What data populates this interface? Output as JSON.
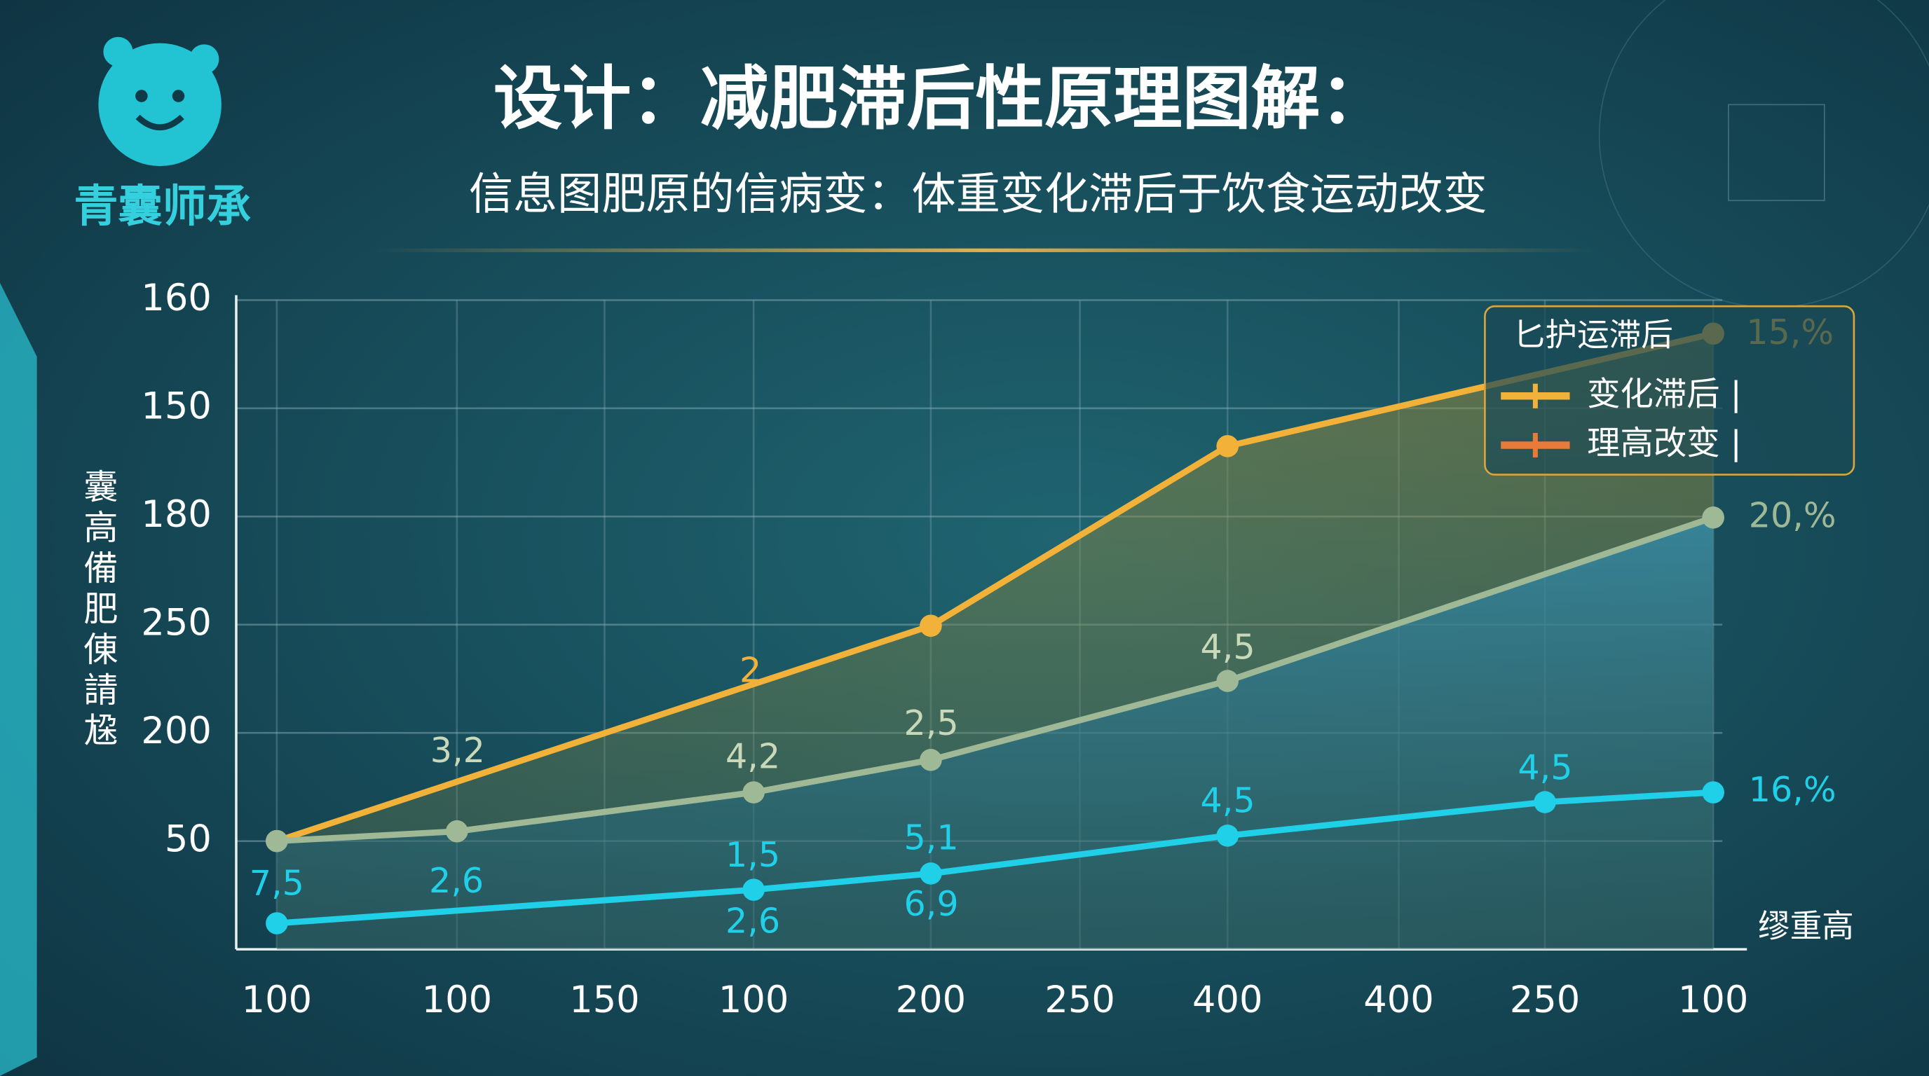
{
  "brand": "青囊师承",
  "chart_data": {
    "type": "line",
    "title": "设计：减肥滞后性原理图解：",
    "subtitle": "信息图肥原的信病变：体重变化滞后于饮食运动改变",
    "ylabel": "囊高備肥倲請尮",
    "xlabel": "缪重高",
    "xlim": [
      -0.3,
      10
    ],
    "xticks": [
      {
        "value": 0,
        "label": "100"
      },
      {
        "value": 1.22,
        "label": "100"
      },
      {
        "value": 2.22,
        "label": "150"
      },
      {
        "value": 3.23,
        "label": "100"
      },
      {
        "value": 4.43,
        "label": "200"
      },
      {
        "value": 5.44,
        "label": "250"
      },
      {
        "value": 6.44,
        "label": "400"
      },
      {
        "value": 7.6,
        "label": "400"
      },
      {
        "value": 8.59,
        "label": "250"
      },
      {
        "value": 9.73,
        "label": "100"
      }
    ],
    "ylim": [
      0,
      6
    ],
    "yticks": [
      {
        "value": 1,
        "label": "50"
      },
      {
        "value": 2,
        "label": "200"
      },
      {
        "value": 3,
        "label": "250"
      },
      {
        "value": 4,
        "label": "180"
      },
      {
        "value": 5,
        "label": "150"
      },
      {
        "value": 6,
        "label": "160"
      }
    ],
    "grid": true,
    "series": [
      {
        "name": "变化滞后 |",
        "color": "#f2b23a",
        "x": [
          0,
          4.43,
          6.44,
          9.73
        ],
        "values": [
          1.0,
          2.99,
          4.65,
          5.69
        ]
      },
      {
        "name": "理高改变 |",
        "color": "#9fb996",
        "x": [
          0,
          1.22,
          3.23,
          4.43,
          6.44,
          9.73
        ],
        "values": [
          1.0,
          1.09,
          1.45,
          1.75,
          2.48,
          3.99
        ]
      },
      {
        "name": "16,%",
        "color": "#1fd0e8",
        "x": [
          0,
          3.23,
          4.43,
          6.44,
          8.59,
          9.73
        ],
        "values": [
          0.24,
          0.55,
          0.7,
          1.05,
          1.36,
          1.45
        ]
      }
    ],
    "legend": {
      "title": "匕护运滞后",
      "position": "upper right"
    },
    "annotations": [
      "3,2",
      "2",
      "4,2",
      "2,5",
      "4,5",
      "1,5",
      "5,1",
      "2,6",
      "6,9",
      "7,5",
      "2,6",
      "4,5",
      "4,5",
      "15,%",
      "20,%",
      "16,%"
    ]
  }
}
